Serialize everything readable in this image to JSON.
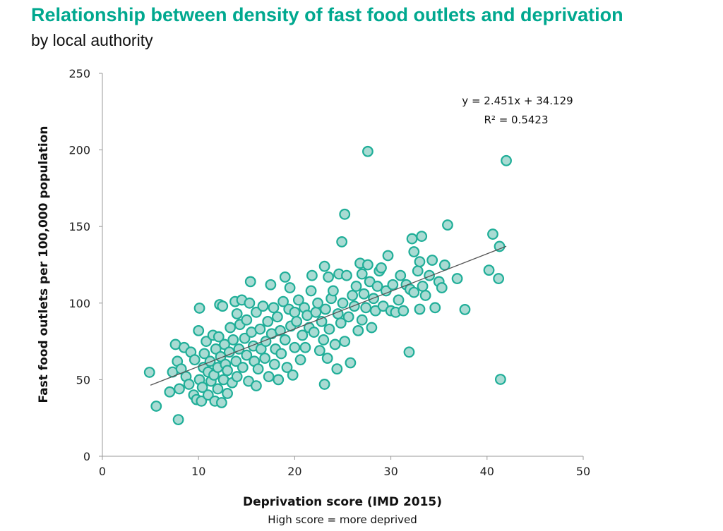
{
  "chart_data": {
    "type": "scatter",
    "title": "Relationship between density of fast food outlets and deprivation",
    "subtitle": "by local authority",
    "xlabel": "Deprivation score (IMD 2015)",
    "xlabel_note": "High score = more deprived",
    "ylabel": "Fast food outlets per 100,000 population",
    "xlim": [
      0,
      50
    ],
    "ylim": [
      0,
      250
    ],
    "xticks": [
      "0",
      "10",
      "20",
      "30",
      "40",
      "50"
    ],
    "yticks": [
      "0",
      "50",
      "100",
      "150",
      "200",
      "250"
    ],
    "grid": false,
    "trendline": {
      "slope": 2.451,
      "intercept": 34.129,
      "x_range": [
        5,
        42
      ],
      "equation": "y = 2.451x + 34.129",
      "r_squared": "R² = 0.5423"
    },
    "colors": {
      "title": "#00a88f",
      "marker_fill": "#a9dbd3",
      "marker_stroke": "#1fae98",
      "trendline": "#555555"
    },
    "points": [
      [
        4.9,
        54.8
      ],
      [
        5.6,
        32.7
      ],
      [
        7.9,
        23.9
      ],
      [
        27.6,
        199
      ],
      [
        42.0,
        193
      ],
      [
        41.4,
        50.2
      ],
      [
        25.2,
        158
      ],
      [
        24.9,
        140
      ],
      [
        35.9,
        151
      ],
      [
        37.7,
        95.8
      ],
      [
        40.6,
        145
      ],
      [
        41.3,
        137
      ],
      [
        40.2,
        121.5
      ],
      [
        41.2,
        116
      ],
      [
        36.9,
        116
      ],
      [
        31.9,
        68
      ],
      [
        23.1,
        47
      ],
      [
        32.2,
        142
      ],
      [
        33.2,
        143.6
      ],
      [
        32.4,
        133.5
      ],
      [
        35.6,
        124.8
      ],
      [
        10.1,
        96.7
      ],
      [
        7,
        42
      ],
      [
        7.3,
        55
      ],
      [
        7.6,
        73
      ],
      [
        7.8,
        62
      ],
      [
        8,
        44
      ],
      [
        8.2,
        57
      ],
      [
        8.5,
        71
      ],
      [
        8.7,
        52
      ],
      [
        9,
        47
      ],
      [
        9.2,
        68
      ],
      [
        9.5,
        40
      ],
      [
        9.6,
        63
      ],
      [
        9.8,
        37
      ],
      [
        10,
        82
      ],
      [
        10.1,
        50
      ],
      [
        10.3,
        36
      ],
      [
        10.4,
        45
      ],
      [
        10.5,
        58
      ],
      [
        10.6,
        67
      ],
      [
        10.8,
        75
      ],
      [
        11,
        55
      ],
      [
        11,
        40
      ],
      [
        11.2,
        62
      ],
      [
        11.3,
        49
      ],
      [
        11.5,
        79
      ],
      [
        11.6,
        53
      ],
      [
        11.7,
        36
      ],
      [
        11.8,
        70
      ],
      [
        12,
        44
      ],
      [
        12,
        58
      ],
      [
        12.1,
        78
      ],
      [
        12.2,
        99
      ],
      [
        12.3,
        65
      ],
      [
        12.4,
        35
      ],
      [
        12.5,
        98
      ],
      [
        12.6,
        50
      ],
      [
        12.7,
        73
      ],
      [
        12.8,
        60
      ],
      [
        13,
        41
      ],
      [
        13,
        56
      ],
      [
        13.2,
        68
      ],
      [
        13.3,
        84
      ],
      [
        13.5,
        48
      ],
      [
        13.6,
        76
      ],
      [
        13.8,
        101
      ],
      [
        13.9,
        62
      ],
      [
        14,
        52
      ],
      [
        14,
        93
      ],
      [
        14.2,
        70
      ],
      [
        14.3,
        86
      ],
      [
        14.5,
        102
      ],
      [
        14.6,
        58
      ],
      [
        14.8,
        77
      ],
      [
        15,
        66
      ],
      [
        15,
        89
      ],
      [
        15.2,
        49
      ],
      [
        15.3,
        100
      ],
      [
        15.4,
        114
      ],
      [
        15.5,
        81
      ],
      [
        15.7,
        72
      ],
      [
        15.8,
        62
      ],
      [
        16,
        94
      ],
      [
        16,
        46
      ],
      [
        16.2,
        57
      ],
      [
        16.4,
        83
      ],
      [
        16.5,
        70
      ],
      [
        16.7,
        98
      ],
      [
        16.9,
        64
      ],
      [
        17,
        75
      ],
      [
        17.2,
        88
      ],
      [
        17.3,
        52
      ],
      [
        17.5,
        112
      ],
      [
        17.6,
        80
      ],
      [
        17.8,
        97
      ],
      [
        17.9,
        60
      ],
      [
        18,
        70
      ],
      [
        18.2,
        91
      ],
      [
        18.3,
        50
      ],
      [
        18.5,
        82
      ],
      [
        18.6,
        67
      ],
      [
        18.8,
        101
      ],
      [
        19,
        117
      ],
      [
        19,
        76
      ],
      [
        19.2,
        58
      ],
      [
        19.4,
        96
      ],
      [
        19.5,
        110
      ],
      [
        19.6,
        85
      ],
      [
        19.8,
        53
      ],
      [
        20,
        71
      ],
      [
        20,
        94
      ],
      [
        20.2,
        88
      ],
      [
        20.4,
        102
      ],
      [
        20.6,
        63
      ],
      [
        20.8,
        79
      ],
      [
        21,
        97
      ],
      [
        21.1,
        71
      ],
      [
        21.3,
        92
      ],
      [
        21.5,
        84
      ],
      [
        21.7,
        108
      ],
      [
        21.8,
        118
      ],
      [
        22,
        81
      ],
      [
        22.2,
        94
      ],
      [
        22.4,
        100
      ],
      [
        22.6,
        69
      ],
      [
        22.8,
        88
      ],
      [
        23,
        76
      ],
      [
        23.1,
        124
      ],
      [
        23.2,
        96
      ],
      [
        23.4,
        64
      ],
      [
        23.5,
        117
      ],
      [
        23.6,
        83
      ],
      [
        23.8,
        103
      ],
      [
        24,
        108
      ],
      [
        24.2,
        73
      ],
      [
        24.4,
        57
      ],
      [
        24.5,
        93
      ],
      [
        24.6,
        119
      ],
      [
        24.8,
        87
      ],
      [
        25,
        100
      ],
      [
        25.2,
        75
      ],
      [
        25.4,
        118
      ],
      [
        25.6,
        91
      ],
      [
        25.8,
        61
      ],
      [
        26,
        105
      ],
      [
        26.2,
        98
      ],
      [
        26.4,
        111
      ],
      [
        26.6,
        82
      ],
      [
        26.8,
        126
      ],
      [
        27,
        119
      ],
      [
        27,
        89
      ],
      [
        27.2,
        106
      ],
      [
        27.4,
        97
      ],
      [
        27.6,
        125
      ],
      [
        27.8,
        114
      ],
      [
        28,
        84
      ],
      [
        28.2,
        103
      ],
      [
        28.4,
        95
      ],
      [
        28.6,
        111
      ],
      [
        28.8,
        121
      ],
      [
        29,
        123
      ],
      [
        29.2,
        98
      ],
      [
        29.5,
        108
      ],
      [
        29.7,
        131
      ],
      [
        30,
        95
      ],
      [
        30.2,
        112
      ],
      [
        30.5,
        94
      ],
      [
        30.8,
        102
      ],
      [
        31,
        118
      ],
      [
        31.3,
        95
      ],
      [
        31.6,
        112
      ],
      [
        32,
        109
      ],
      [
        32.4,
        107
      ],
      [
        32.8,
        121
      ],
      [
        33,
        127
      ],
      [
        33,
        96
      ],
      [
        33.3,
        111
      ],
      [
        33.6,
        105
      ],
      [
        34,
        118
      ],
      [
        34.3,
        128
      ],
      [
        34.6,
        97
      ],
      [
        35,
        114
      ],
      [
        35.3,
        110
      ]
    ]
  }
}
